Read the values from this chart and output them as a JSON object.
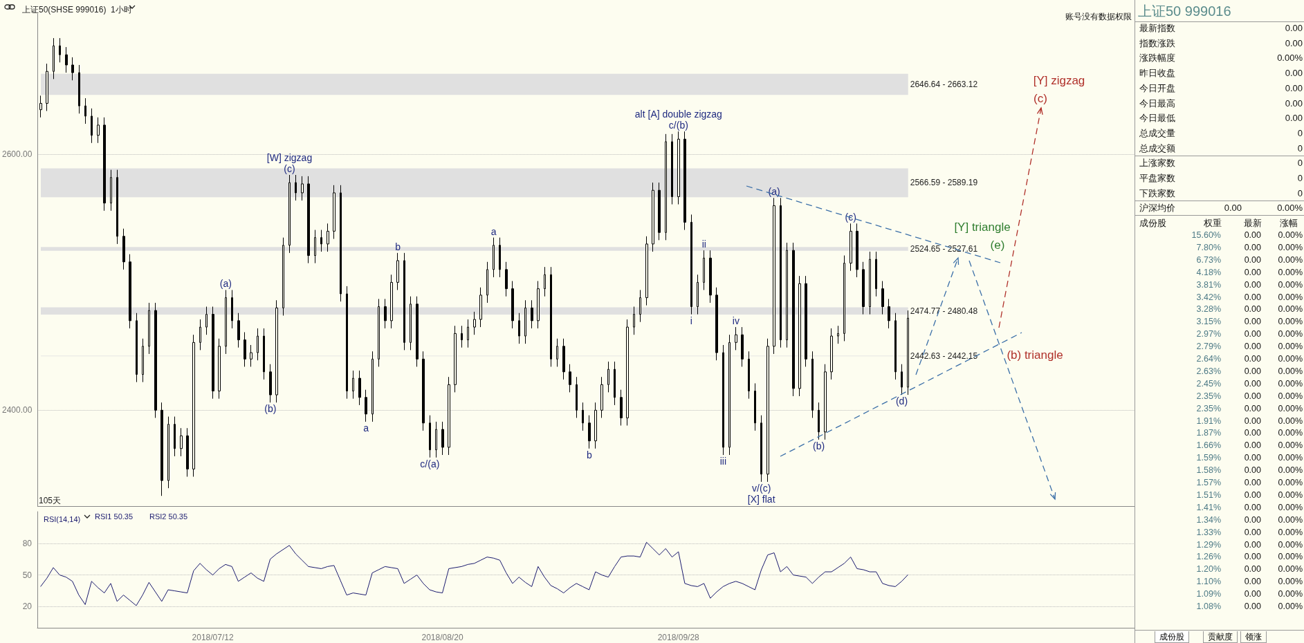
{
  "chart_data": [
    {
      "type": "candlestick",
      "title": "上证50(SHSE 999016)  1小时",
      "color": "#000000",
      "categories": [
        null,
        null,
        null,
        null,
        null,
        null,
        null,
        null,
        null,
        null,
        null,
        null,
        null,
        null,
        null,
        null,
        null,
        null,
        null,
        null,
        null,
        null,
        null,
        null,
        null,
        null,
        null,
        "2018/07/12",
        null,
        null,
        null,
        null,
        null,
        null,
        null,
        null,
        null,
        null,
        null,
        null,
        null,
        null,
        null,
        null,
        null,
        null,
        null,
        null,
        null,
        null,
        null,
        null,
        null,
        null,
        null,
        null,
        null,
        null,
        null,
        null,
        null,
        null,
        null,
        "2018/08/20",
        null,
        null,
        null,
        null,
        null,
        null,
        null,
        null,
        null,
        null,
        null,
        null,
        null,
        null,
        null,
        null,
        null,
        null,
        null,
        null,
        null,
        null,
        null,
        null,
        null,
        null,
        null,
        null,
        null,
        null,
        null,
        null,
        null,
        null,
        null,
        null,
        "2018/09/28",
        null,
        null,
        null,
        null,
        null,
        null,
        null,
        null,
        null,
        null,
        null,
        null,
        null,
        null,
        null,
        null,
        null,
        null,
        null,
        null,
        null,
        null,
        null,
        null,
        null,
        null,
        null,
        null,
        null,
        null,
        null,
        null,
        null,
        null,
        null,
        null,
        null,
        null,
        null,
        null,
        null,
        null,
        null,
        null,
        null,
        null,
        null,
        null,
        null,
        null,
        null,
        null,
        null,
        null,
        null,
        null,
        null,
        null,
        null,
        null,
        null,
        null,
        null,
        null,
        null,
        null,
        null,
        null,
        null,
        null,
        null
      ],
      "ohlc": [
        [
          2635,
          2646,
          2629,
          2640
        ],
        [
          2640,
          2671,
          2634,
          2665
        ],
        [
          2665,
          2691,
          2659,
          2685
        ],
        [
          2685,
          2691,
          2672,
          2678
        ],
        [
          2678,
          2684,
          2664,
          2670
        ],
        [
          2670,
          2676,
          2658,
          2664
        ],
        [
          2664,
          2670,
          2632,
          2638
        ],
        [
          2638,
          2644,
          2624,
          2630
        ],
        [
          2630,
          2636,
          2609,
          2615
        ],
        [
          2615,
          2629,
          2609,
          2623
        ],
        [
          2623,
          2629,
          2556,
          2562
        ],
        [
          2562,
          2588,
          2556,
          2582
        ],
        [
          2582,
          2588,
          2530,
          2536
        ],
        [
          2536,
          2542,
          2510,
          2516
        ],
        [
          2516,
          2522,
          2464,
          2470
        ],
        [
          2470,
          2476,
          2422,
          2428
        ],
        [
          2428,
          2456,
          2422,
          2450
        ],
        [
          2450,
          2484,
          2444,
          2478
        ],
        [
          2478,
          2484,
          2394,
          2400
        ],
        [
          2400,
          2406,
          2333,
          2345
        ],
        [
          2345,
          2395,
          2339,
          2389
        ],
        [
          2389,
          2395,
          2364,
          2370
        ],
        [
          2370,
          2386,
          2364,
          2380
        ],
        [
          2380,
          2386,
          2348,
          2354
        ],
        [
          2354,
          2459,
          2348,
          2453
        ],
        [
          2453,
          2471,
          2447,
          2465
        ],
        [
          2465,
          2481,
          2459,
          2475
        ],
        [
          2475,
          2481,
          2409,
          2415
        ],
        [
          2415,
          2456,
          2409,
          2450
        ],
        [
          2450,
          2494,
          2444,
          2488
        ],
        [
          2488,
          2494,
          2464,
          2470
        ],
        [
          2470,
          2476,
          2449,
          2455
        ],
        [
          2455,
          2461,
          2434,
          2440
        ],
        [
          2440,
          2451,
          2434,
          2445
        ],
        [
          2445,
          2464,
          2439,
          2458
        ],
        [
          2458,
          2464,
          2424,
          2430
        ],
        [
          2430,
          2436,
          2406,
          2412
        ],
        [
          2412,
          2486,
          2406,
          2480
        ],
        [
          2480,
          2535,
          2474,
          2529
        ],
        [
          2529,
          2584,
          2523,
          2578
        ],
        [
          2578,
          2584,
          2564,
          2570
        ],
        [
          2570,
          2583,
          2564,
          2577
        ],
        [
          2577,
          2583,
          2515,
          2521
        ],
        [
          2521,
          2541,
          2515,
          2535
        ],
        [
          2535,
          2541,
          2524,
          2530
        ],
        [
          2530,
          2546,
          2524,
          2540
        ],
        [
          2540,
          2576,
          2534,
          2570
        ],
        [
          2570,
          2576,
          2485,
          2491
        ],
        [
          2491,
          2497,
          2409,
          2415
        ],
        [
          2415,
          2431,
          2409,
          2425
        ],
        [
          2425,
          2431,
          2404,
          2410
        ],
        [
          2410,
          2416,
          2391,
          2397
        ],
        [
          2397,
          2446,
          2391,
          2440
        ],
        [
          2440,
          2487,
          2434,
          2481
        ],
        [
          2481,
          2487,
          2464,
          2470
        ],
        [
          2470,
          2506,
          2464,
          2500
        ],
        [
          2500,
          2523,
          2494,
          2517
        ],
        [
          2517,
          2523,
          2447,
          2453
        ],
        [
          2453,
          2489,
          2447,
          2483
        ],
        [
          2483,
          2489,
          2434,
          2440
        ],
        [
          2440,
          2446,
          2384,
          2390
        ],
        [
          2390,
          2396,
          2363,
          2369
        ],
        [
          2369,
          2391,
          2363,
          2385
        ],
        [
          2385,
          2391,
          2365,
          2371
        ],
        [
          2371,
          2426,
          2365,
          2420
        ],
        [
          2420,
          2466,
          2414,
          2460
        ],
        [
          2460,
          2466,
          2449,
          2455
        ],
        [
          2455,
          2471,
          2449,
          2465
        ],
        [
          2465,
          2477,
          2459,
          2471
        ],
        [
          2471,
          2496,
          2465,
          2490
        ],
        [
          2490,
          2516,
          2484,
          2510
        ],
        [
          2510,
          2535,
          2504,
          2529
        ],
        [
          2529,
          2535,
          2504,
          2510
        ],
        [
          2510,
          2516,
          2489,
          2495
        ],
        [
          2495,
          2501,
          2464,
          2470
        ],
        [
          2470,
          2476,
          2452,
          2458
        ],
        [
          2458,
          2486,
          2452,
          2480
        ],
        [
          2480,
          2486,
          2464,
          2470
        ],
        [
          2470,
          2501,
          2464,
          2495
        ],
        [
          2495,
          2512,
          2489,
          2506
        ],
        [
          2506,
          2512,
          2434,
          2440
        ],
        [
          2440,
          2456,
          2434,
          2450
        ],
        [
          2450,
          2456,
          2424,
          2430
        ],
        [
          2430,
          2436,
          2414,
          2420
        ],
        [
          2420,
          2426,
          2394,
          2400
        ],
        [
          2400,
          2406,
          2384,
          2390
        ],
        [
          2390,
          2396,
          2370,
          2376
        ],
        [
          2376,
          2406,
          2370,
          2400
        ],
        [
          2400,
          2426,
          2394,
          2420
        ],
        [
          2420,
          2438,
          2414,
          2432
        ],
        [
          2432,
          2438,
          2404,
          2410
        ],
        [
          2410,
          2416,
          2388,
          2394
        ],
        [
          2394,
          2471,
          2388,
          2465
        ],
        [
          2465,
          2481,
          2459,
          2475
        ],
        [
          2475,
          2494,
          2469,
          2488
        ],
        [
          2488,
          2536,
          2482,
          2530
        ],
        [
          2530,
          2578,
          2524,
          2572
        ],
        [
          2572,
          2578,
          2533,
          2539
        ],
        [
          2539,
          2616,
          2533,
          2610
        ],
        [
          2610,
          2616,
          2561,
          2567
        ],
        [
          2567,
          2618,
          2561,
          2612
        ],
        [
          2612,
          2618,
          2541,
          2547
        ],
        [
          2547,
          2553,
          2475,
          2481
        ],
        [
          2481,
          2506,
          2475,
          2500
        ],
        [
          2500,
          2525,
          2494,
          2519
        ],
        [
          2519,
          2525,
          2484,
          2490
        ],
        [
          2490,
          2496,
          2439,
          2445
        ],
        [
          2445,
          2451,
          2365,
          2371
        ],
        [
          2371,
          2459,
          2365,
          2453
        ],
        [
          2453,
          2465,
          2447,
          2459
        ],
        [
          2459,
          2465,
          2434,
          2440
        ],
        [
          2440,
          2446,
          2409,
          2415
        ],
        [
          2415,
          2421,
          2384,
          2390
        ],
        [
          2390,
          2396,
          2344,
          2350
        ],
        [
          2350,
          2456,
          2344,
          2450
        ],
        [
          2450,
          2566,
          2444,
          2560
        ],
        [
          2560,
          2566,
          2449,
          2455
        ],
        [
          2455,
          2531,
          2449,
          2525
        ],
        [
          2525,
          2531,
          2411,
          2417
        ],
        [
          2417,
          2505,
          2411,
          2499
        ],
        [
          2499,
          2505,
          2434,
          2440
        ],
        [
          2440,
          2446,
          2394,
          2400
        ],
        [
          2400,
          2406,
          2377,
          2383
        ],
        [
          2383,
          2436,
          2377,
          2430
        ],
        [
          2430,
          2464,
          2424,
          2458
        ],
        [
          2458,
          2466,
          2452,
          2460
        ],
        [
          2460,
          2521,
          2454,
          2515
        ],
        [
          2515,
          2546,
          2509,
          2540
        ],
        [
          2540,
          2546,
          2504,
          2510
        ],
        [
          2510,
          2516,
          2475,
          2481
        ],
        [
          2481,
          2524,
          2475,
          2518
        ],
        [
          2518,
          2524,
          2489,
          2495
        ],
        [
          2495,
          2501,
          2475,
          2481
        ],
        [
          2481,
          2487,
          2464,
          2470
        ],
        [
          2470,
          2476,
          2424,
          2430
        ],
        [
          2430,
          2436,
          2412,
          2418
        ],
        [
          2418,
          2478,
          2412,
          2472
        ],
        null,
        null,
        null,
        null,
        null,
        null,
        null,
        null,
        null,
        null,
        null,
        null,
        null,
        null,
        null,
        null,
        null,
        null,
        null,
        null,
        null,
        null,
        null,
        null,
        null,
        null,
        null,
        null,
        null,
        null,
        null,
        null,
        null,
        null,
        null
      ],
      "value_labels": [
        null,
        null,
        null,
        null,
        null,
        null,
        null,
        null,
        null,
        null,
        null,
        null,
        null,
        null,
        null,
        null,
        null,
        null,
        null,
        null,
        null,
        null,
        null,
        null,
        null,
        null,
        null,
        null,
        null,
        "(a)",
        null,
        null,
        null,
        null,
        null,
        null,
        "(b)",
        null,
        null,
        "[W] zigzag\n(c)",
        null,
        null,
        null,
        null,
        null,
        null,
        null,
        null,
        null,
        null,
        null,
        "a",
        null,
        null,
        null,
        null,
        "b",
        null,
        null,
        null,
        null,
        "c/(a)",
        null,
        null,
        null,
        null,
        null,
        null,
        null,
        null,
        null,
        "a",
        null,
        null,
        null,
        null,
        null,
        null,
        null,
        null,
        null,
        null,
        null,
        null,
        null,
        null,
        "b",
        null,
        null,
        null,
        null,
        null,
        null,
        null,
        null,
        null,
        null,
        null,
        null,
        null,
        "alt [A] double zigzag\nc/(b)",
        null,
        "i",
        null,
        "ii",
        null,
        null,
        "iii",
        null,
        "iv",
        null,
        null,
        null,
        "v/(c)\n[X] flat",
        null,
        "(a)",
        null,
        null,
        null,
        null,
        null,
        null,
        "(b)",
        null,
        null,
        null,
        null,
        "(c)",
        null,
        null,
        null,
        null,
        null,
        null,
        null,
        "(d)",
        null,
        null,
        null,
        null,
        null,
        null,
        null,
        null,
        null,
        null,
        null,
        null,
        null,
        null,
        null,
        null,
        null,
        null,
        null,
        null,
        null,
        null,
        null,
        null,
        null,
        null,
        null,
        null,
        null,
        null,
        null,
        null,
        null,
        null,
        null,
        null
      ],
      "ylim": [
        2325,
        2710
      ],
      "yticks": [
        {
          "value": 2400,
          "label": "2400.00"
        },
        {
          "value": 2600,
          "label": "2600.00"
        }
      ],
      "grid": "y",
      "tick_labels": "y",
      "bands": [
        {
          "axis": "y",
          "from": 2646.64,
          "to": 2663.12,
          "label": "2646.64 - 2663.12",
          "color": "#e0e0e0"
        },
        {
          "axis": "y",
          "from": 2566.59,
          "to": 2589.19,
          "label": "2566.59 - 2589.19",
          "color": "#e0e0e0"
        },
        {
          "axis": "y",
          "from": 2524.65,
          "to": 2527.61,
          "label": "2524.65 - 2527.61",
          "color": "#e0e0e0"
        },
        {
          "axis": "y",
          "from": 2474.77,
          "to": 2480.48,
          "label": "2474.77 - 2480.48",
          "color": "#e0e0e0"
        },
        {
          "axis": "y",
          "from": 2442.63,
          "to": 2442.15,
          "label": "2442.63 - 2442.15",
          "color": "#e0e0e0"
        }
      ],
      "annotations": [
        "账号没有数据权限",
        "105天",
        "[Y] zigzag",
        "(c)",
        "[Y] triangle",
        "(e)",
        "(b) triangle"
      ]
    },
    {
      "type": "line",
      "title": "RSI(14,14)",
      "color": "#1a1a6e",
      "categories": [
        null,
        null,
        null,
        null,
        null,
        null,
        null,
        null,
        null,
        null,
        null,
        null,
        null,
        null,
        null,
        null,
        null,
        null,
        null,
        null,
        null,
        null,
        null,
        null,
        null,
        null,
        null,
        "2018/07/12",
        null,
        null,
        null,
        null,
        null,
        null,
        null,
        null,
        null,
        null,
        null,
        null,
        null,
        null,
        null,
        null,
        null,
        null,
        null,
        null,
        null,
        null,
        null,
        null,
        null,
        null,
        null,
        null,
        null,
        null,
        null,
        null,
        null,
        null,
        null,
        "2018/08/20",
        null,
        null,
        null,
        null,
        null,
        null,
        null,
        null,
        null,
        null,
        null,
        null,
        null,
        null,
        null,
        null,
        null,
        null,
        null,
        null,
        null,
        null,
        null,
        null,
        null,
        null,
        null,
        null,
        null,
        null,
        null,
        null,
        null,
        null,
        null,
        null,
        "2018/09/28",
        null,
        null,
        null,
        null,
        null,
        null,
        null,
        null,
        null,
        null,
        null,
        null,
        null,
        null,
        null,
        null,
        null,
        null,
        null,
        null,
        null,
        null,
        null,
        null,
        null,
        null,
        null,
        null,
        null,
        null,
        null,
        null,
        null,
        null,
        null,
        null,
        null,
        null,
        null,
        null,
        null,
        null,
        null,
        null,
        null,
        null,
        null,
        null,
        null,
        null,
        null,
        null,
        null,
        null,
        null,
        null,
        null,
        null,
        null,
        null,
        null,
        null,
        null,
        null,
        null,
        null,
        null,
        null,
        null,
        null,
        null
      ],
      "values": [
        39,
        47,
        57,
        50,
        48,
        44,
        31,
        22,
        44,
        38,
        33,
        42,
        25,
        31,
        26,
        21,
        31,
        43,
        34,
        25,
        36,
        35,
        34,
        33,
        54,
        61,
        55,
        50,
        56,
        60,
        58,
        44,
        48,
        52,
        47,
        44,
        65,
        70,
        74,
        78,
        70,
        64,
        58,
        57,
        56,
        58,
        59,
        45,
        31,
        33,
        32,
        31,
        52,
        55,
        58,
        57,
        56,
        42,
        46,
        50,
        42,
        36,
        34,
        33,
        56,
        57,
        58,
        60,
        61,
        64,
        67,
        66,
        64,
        52,
        42,
        48,
        43,
        39,
        58,
        48,
        40,
        37,
        33,
        38,
        42,
        39,
        36,
        53,
        50,
        48,
        58,
        67,
        68,
        68,
        67,
        81,
        75,
        69,
        75,
        67,
        72,
        42,
        40,
        39,
        42,
        28,
        34,
        39,
        42,
        44,
        42,
        39,
        36,
        55,
        69,
        71,
        53,
        58,
        50,
        49,
        48,
        42,
        48,
        53,
        53,
        57,
        61,
        67,
        56,
        55,
        53,
        53,
        42,
        40,
        39,
        44,
        50.35,
        null,
        null,
        null,
        null,
        null,
        null,
        null,
        null,
        null,
        null,
        null,
        null,
        null,
        null,
        null,
        null,
        null,
        null,
        null,
        null,
        null,
        null,
        null,
        null,
        null,
        null,
        null,
        null,
        null,
        null,
        null,
        null,
        null,
        null,
        null
      ],
      "ylim": [
        0,
        110
      ],
      "yticks": [
        20,
        50,
        80
      ],
      "grid": "y",
      "annotations": [
        "RSI1 50.35",
        "RSI2 50.35"
      ]
    },
    {
      "type": "other",
      "title": "上证50  999016",
      "annotations": [
        "最新指数",
        "0.00",
        "指数涨跌",
        "0.00",
        "涨跌幅度",
        "0.00%",
        "昨日收盘",
        "0.00",
        "今日开盘",
        "0.00",
        "今日最高",
        "0.00",
        "今日最低",
        "0.00",
        "总成交量",
        "0",
        "总成交额",
        "0",
        "上涨家数",
        "0",
        "平盘家数",
        "0",
        "下跌家数",
        "0",
        "沪深均价",
        "0.00",
        "0.00%",
        "成份股",
        "权重",
        "最新",
        "涨幅",
        "15.60%",
        "0.00",
        "0.00%",
        "7.80%",
        "0.00",
        "0.00%",
        "6.73%",
        "0.00",
        "0.00%",
        "4.18%",
        "0.00",
        "0.00%",
        "3.81%",
        "0.00",
        "0.00%",
        "3.42%",
        "0.00",
        "0.00%",
        "3.28%",
        "0.00",
        "0.00%",
        "3.15%",
        "0.00",
        "0.00%",
        "2.97%",
        "0.00",
        "0.00%",
        "2.79%",
        "0.00",
        "0.00%",
        "2.64%",
        "0.00",
        "0.00%",
        "2.63%",
        "0.00",
        "0.00%",
        "2.45%",
        "0.00",
        "0.00%",
        "2.35%",
        "0.00",
        "0.00%",
        "2.35%",
        "0.00",
        "0.00%",
        "1.91%",
        "0.00",
        "0.00%",
        "1.87%",
        "0.00",
        "0.00%",
        "1.66%",
        "0.00",
        "0.00%",
        "1.59%",
        "0.00",
        "0.00%",
        "1.58%",
        "0.00",
        "0.00%",
        "1.57%",
        "0.00",
        "0.00%",
        "1.51%",
        "0.00",
        "0.00%",
        "1.41%",
        "0.00",
        "0.00%",
        "1.34%",
        "0.00",
        "0.00%",
        "1.33%",
        "0.00",
        "0.00%",
        "1.29%",
        "0.00",
        "0.00%",
        "1.26%",
        "0.00",
        "0.00%",
        "1.20%",
        "0.00",
        "0.00%",
        "1.10%",
        "0.00",
        "0.00%",
        "1.09%",
        "0.00",
        "0.00%",
        "1.08%",
        "0.00",
        "0.00%",
        "成份股",
        "贡献度",
        "领涨"
      ]
    }
  ]
}
